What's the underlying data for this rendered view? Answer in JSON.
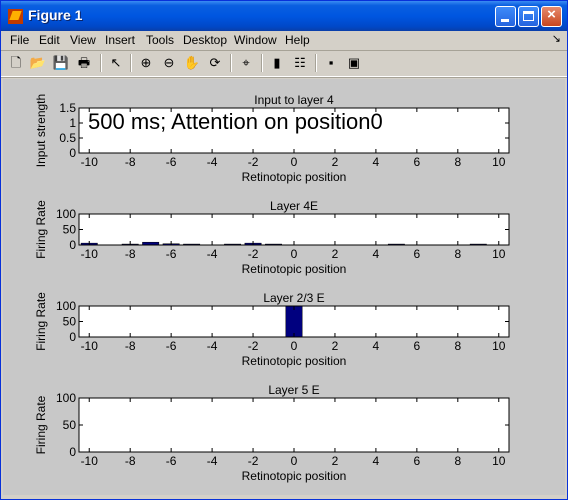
{
  "window": {
    "title": "Figure 1"
  },
  "menu": [
    "File",
    "Edit",
    "View",
    "Insert",
    "Tools",
    "Desktop",
    "Window",
    "Help"
  ],
  "toolbar": {
    "icons": [
      "new-file-icon",
      "open-folder-icon",
      "save-icon",
      "print-icon",
      "select-arrow-icon",
      "zoom-in-icon",
      "zoom-out-icon",
      "pan-hand-icon",
      "rotate-3d-icon",
      "data-cursor-icon",
      "colorbar-icon",
      "legend-icon",
      "hide-plot-tools-icon",
      "show-plot-tools-icon"
    ]
  },
  "colors": {
    "bar": "#00007f",
    "axes_bg": "#ffffff",
    "figure_bg": "#c8c8c8"
  },
  "chart_data": [
    {
      "type": "bar",
      "title": "Input to layer 4",
      "xlabel": "Retinotopic position",
      "ylabel": "Input strength",
      "xlim": [
        -10.5,
        10.5
      ],
      "ylim": [
        0,
        1.5
      ],
      "xticks": [
        "-10",
        "-8",
        "-6",
        "-4",
        "-2",
        "0",
        "2",
        "4",
        "6",
        "8",
        "10"
      ],
      "yticks": [
        "0",
        "0.5",
        "1",
        "1.5"
      ],
      "annotation": "500 ms; Attention on position0",
      "x": [],
      "values": []
    },
    {
      "type": "bar",
      "title": "Layer 4E",
      "xlabel": "Retinotopic position",
      "ylabel": "Firing Rate",
      "xlim": [
        -10.5,
        10.5
      ],
      "ylim": [
        0,
        100
      ],
      "xticks": [
        "-10",
        "-8",
        "-6",
        "-4",
        "-2",
        "0",
        "2",
        "4",
        "6",
        "8",
        "10"
      ],
      "yticks": [
        "0",
        "50",
        "100"
      ],
      "x": [
        -10,
        -8,
        -7,
        -6,
        -5,
        -3,
        -2,
        -1,
        5,
        9
      ],
      "values": [
        6,
        3,
        9,
        4,
        3,
        3,
        6,
        3,
        3,
        3
      ]
    },
    {
      "type": "bar",
      "title": "Layer 2/3 E",
      "xlabel": "Retinotopic position",
      "ylabel": "Firing Rate",
      "xlim": [
        -10.5,
        10.5
      ],
      "ylim": [
        0,
        100
      ],
      "xticks": [
        "-10",
        "-8",
        "-6",
        "-4",
        "-2",
        "0",
        "2",
        "4",
        "6",
        "8",
        "10"
      ],
      "yticks": [
        "0",
        "50",
        "100"
      ],
      "x": [
        0
      ],
      "values": [
        100
      ]
    },
    {
      "type": "bar",
      "title": "Layer 5 E",
      "xlabel": "Retinotopic position",
      "ylabel": "Firing Rate",
      "xlim": [
        -10.5,
        10.5
      ],
      "ylim": [
        0,
        100
      ],
      "xticks": [
        "-10",
        "-8",
        "-6",
        "-4",
        "-2",
        "0",
        "2",
        "4",
        "6",
        "8",
        "10"
      ],
      "yticks": [
        "0",
        "50",
        "100"
      ],
      "x": [],
      "values": []
    }
  ]
}
